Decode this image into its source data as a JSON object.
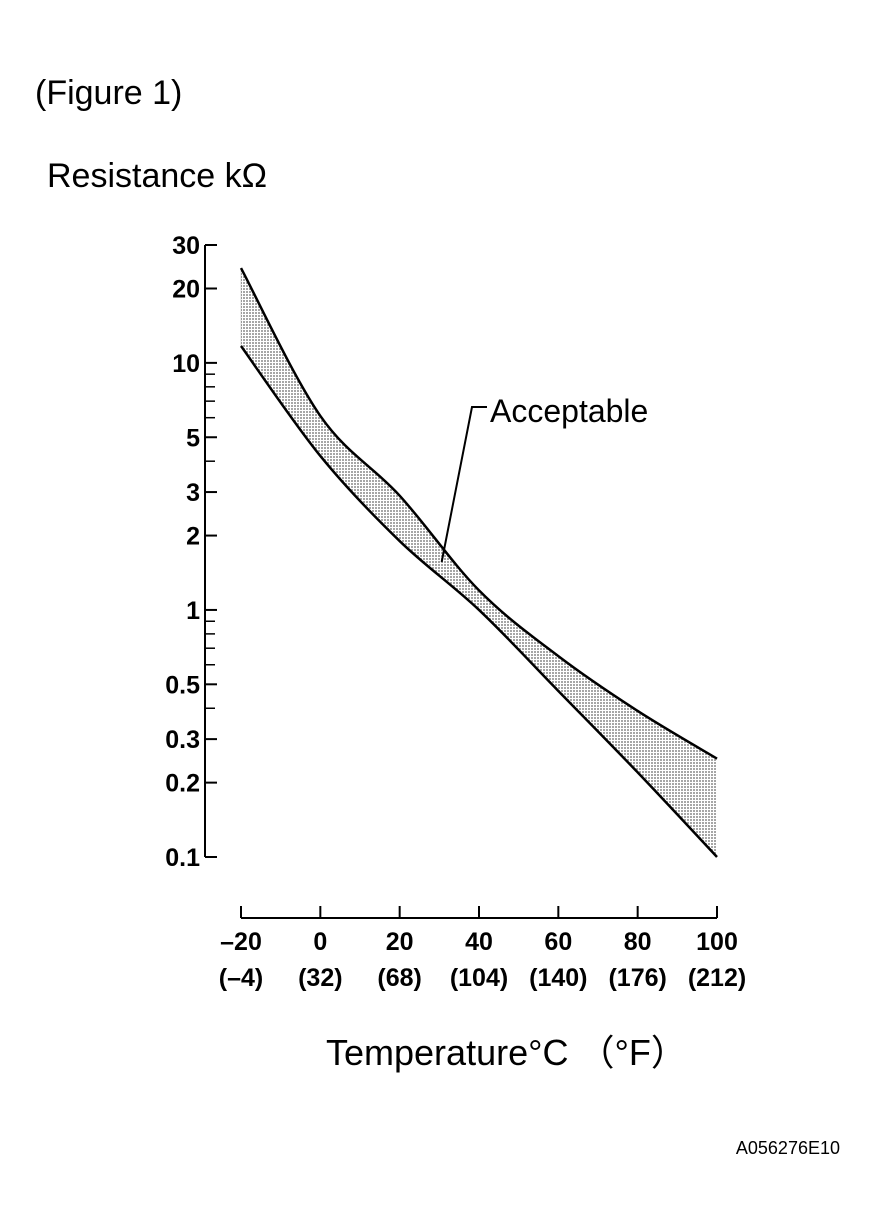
{
  "figure_label": "(Figure 1)",
  "footer_code": "A056276E10",
  "chart_data": {
    "type": "band",
    "y_label": "Resistance kΩ",
    "x_label": "Temperature°C （°F）",
    "annotation": "Acceptable",
    "x": [
      -20,
      0,
      20,
      40,
      60,
      80,
      100
    ],
    "series": [
      {
        "color": "#000000",
        "values": [
          24.2,
          6.1,
          2.9,
          1.2,
          0.65,
          0.39,
          0.25
        ]
      },
      {
        "color": "#000000",
        "values": [
          11.7,
          4.2,
          1.9,
          1.0,
          0.47,
          0.22,
          0.1
        ]
      }
    ],
    "band_color": "#b8b8b8",
    "xlim": [
      -20,
      100
    ],
    "xticks": [
      {
        "value": -20,
        "label": "–20"
      },
      0,
      20,
      40,
      60,
      80,
      100
    ],
    "xtick_sublabels": [
      "(–4)",
      "(32)",
      "(68)",
      "(104)",
      "(140)",
      "(176)",
      "(212)"
    ],
    "ylim": [
      0.1,
      30
    ],
    "log_y": true,
    "yticks": [
      30,
      20,
      10,
      5,
      3,
      2,
      1,
      0.5,
      0.3,
      0.2,
      0.1
    ],
    "yminorticks": [
      9,
      8,
      7,
      6,
      4,
      0.9,
      0.8,
      0.7,
      0.6,
      0.4
    ]
  }
}
